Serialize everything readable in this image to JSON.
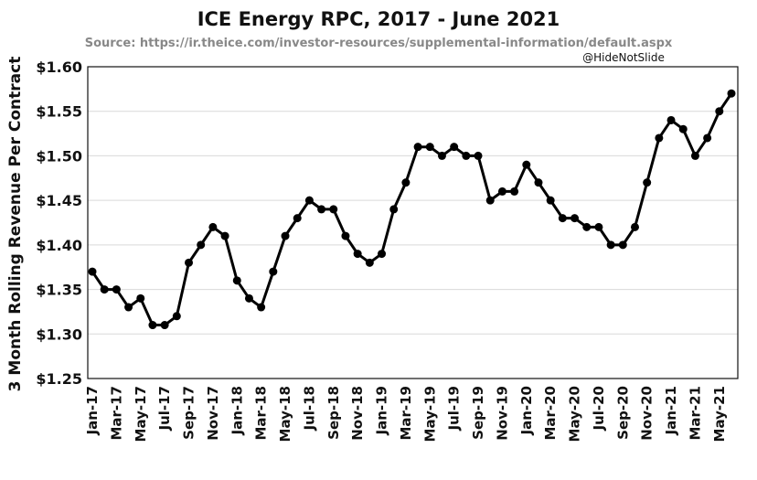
{
  "chart_data": {
    "type": "line",
    "title": "ICE Energy RPC, 2017 - June 2021",
    "subtitle": "Source: https://ir.theice.com/investor-resources/supplemental-information/default.aspx",
    "credit": "@HideNotSlide",
    "xlabel": "",
    "ylabel": "3 Month Rolling Revenue Per Contract",
    "ylim": [
      1.25,
      1.6
    ],
    "yticks": [
      1.25,
      1.3,
      1.35,
      1.4,
      1.45,
      1.5,
      1.55,
      1.6
    ],
    "ytick_labels": [
      "$1.25",
      "$1.30",
      "$1.35",
      "$1.40",
      "$1.45",
      "$1.50",
      "$1.55",
      "$1.60"
    ],
    "grid": true,
    "x": [
      "Jan-17",
      "Feb-17",
      "Mar-17",
      "Apr-17",
      "May-17",
      "Jun-17",
      "Jul-17",
      "Aug-17",
      "Sep-17",
      "Oct-17",
      "Nov-17",
      "Dec-17",
      "Jan-18",
      "Feb-18",
      "Mar-18",
      "Apr-18",
      "May-18",
      "Jun-18",
      "Jul-18",
      "Aug-18",
      "Sep-18",
      "Oct-18",
      "Nov-18",
      "Dec-18",
      "Jan-19",
      "Feb-19",
      "Mar-19",
      "Apr-19",
      "May-19",
      "Jun-19",
      "Jul-19",
      "Aug-19",
      "Sep-19",
      "Oct-19",
      "Nov-19",
      "Dec-19",
      "Jan-20",
      "Feb-20",
      "Mar-20",
      "Apr-20",
      "May-20",
      "Jun-20",
      "Jul-20",
      "Aug-20",
      "Sep-20",
      "Oct-20",
      "Nov-20",
      "Dec-20",
      "Jan-21",
      "Feb-21",
      "Mar-21",
      "Apr-21",
      "May-21",
      "Jun-21"
    ],
    "xtick_labels": [
      "Jan-17",
      "Mar-17",
      "May-17",
      "Jul-17",
      "Sep-17",
      "Nov-17",
      "Jan-18",
      "Mar-18",
      "May-18",
      "Jul-18",
      "Sep-18",
      "Nov-18",
      "Jan-19",
      "Mar-19",
      "May-19",
      "Jul-19",
      "Sep-19",
      "Nov-19",
      "Jan-20",
      "Mar-20",
      "May-20",
      "Jul-20",
      "Sep-20",
      "Nov-20",
      "Jan-21",
      "Mar-21",
      "May-21"
    ],
    "series": [
      {
        "name": "ICE Energy RPC",
        "values": [
          1.37,
          1.35,
          1.35,
          1.33,
          1.34,
          1.31,
          1.31,
          1.32,
          1.38,
          1.4,
          1.42,
          1.41,
          1.36,
          1.34,
          1.33,
          1.37,
          1.41,
          1.43,
          1.45,
          1.44,
          1.44,
          1.41,
          1.39,
          1.38,
          1.39,
          1.44,
          1.47,
          1.51,
          1.51,
          1.5,
          1.51,
          1.5,
          1.5,
          1.45,
          1.46,
          1.46,
          1.49,
          1.47,
          1.45,
          1.43,
          1.43,
          1.42,
          1.42,
          1.4,
          1.4,
          1.42,
          1.47,
          1.52,
          1.54,
          1.53,
          1.5,
          1.52,
          1.55,
          1.57
        ],
        "color": "#000000"
      }
    ]
  }
}
